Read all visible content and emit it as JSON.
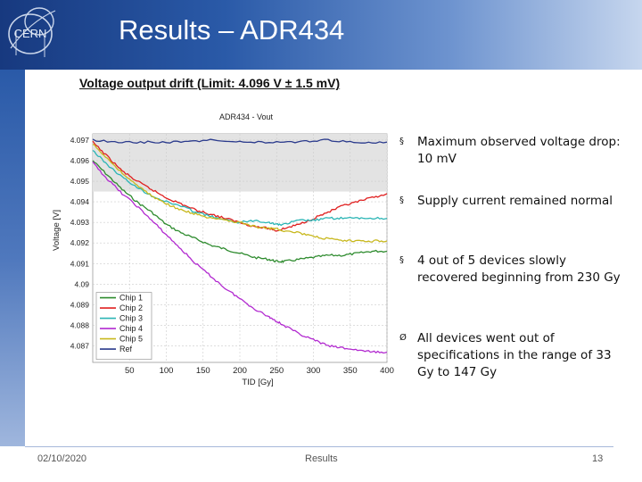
{
  "slide": {
    "logo_text": "CERN",
    "title": "Results – ADR434",
    "subtitle": "Voltage output drift (Limit: 4.096 V ± 1.5 mV)",
    "bullets": [
      {
        "marker": "§",
        "text": "Maximum observed voltage drop: 10 mV"
      },
      {
        "marker": "§",
        "text": "Supply current remained normal"
      },
      {
        "marker": "§",
        "text": "4 out of 5 devices slowly recovered beginning from 230 Gy"
      },
      {
        "marker": "Ø",
        "text": "All devices went out of specifications in the range of 33 Gy to 147 Gy"
      }
    ],
    "footer": {
      "date": "02/10/2020",
      "section": "Results",
      "page": "13"
    }
  },
  "chart_data": {
    "type": "line",
    "title": "ADR434 - Vout",
    "xlabel": "TID [Gy]",
    "ylabel": "Voltage [V]",
    "xlim": [
      0,
      400
    ],
    "ylim": [
      4.0862,
      4.0973
    ],
    "x_ticks": [
      "50",
      "100",
      "150",
      "200",
      "250",
      "300",
      "350",
      "400"
    ],
    "x_tick_values": [
      50,
      100,
      150,
      200,
      250,
      300,
      350,
      400
    ],
    "y_ticks": [
      "4.097",
      "4.096",
      "4.095",
      "4.094",
      "4.093",
      "4.092",
      "4.091",
      "4.09",
      "4.089",
      "4.088",
      "4.087"
    ],
    "y_tick_values": [
      4.097,
      4.096,
      4.095,
      4.094,
      4.093,
      4.092,
      4.091,
      4.09,
      4.089,
      4.088,
      4.087
    ],
    "grid": true,
    "legend_position": "bottom-left",
    "spec_band": [
      4.0945,
      4.0975
    ],
    "spec_band_color": "#e3e3e3",
    "series": [
      {
        "name": "Chip 1",
        "color": "#2e8b2e",
        "x": [
          0,
          20,
          40,
          60,
          80,
          100,
          120,
          140,
          160,
          180,
          200,
          220,
          240,
          250,
          260,
          280,
          300,
          320,
          340,
          360,
          380,
          400
        ],
        "y": [
          4.096,
          4.0953,
          4.0946,
          4.094,
          4.0935,
          4.0929,
          4.0925,
          4.0922,
          4.0919,
          4.0917,
          4.0915,
          4.0913,
          4.0912,
          4.0911,
          4.0911,
          4.0912,
          4.0913,
          4.0914,
          4.0914,
          4.0915,
          4.0916,
          4.0916
        ]
      },
      {
        "name": "Chip 2",
        "color": "#e02020",
        "x": [
          0,
          20,
          40,
          60,
          80,
          100,
          120,
          140,
          160,
          180,
          200,
          220,
          240,
          250,
          260,
          280,
          300,
          320,
          340,
          360,
          380,
          400
        ],
        "y": [
          4.0969,
          4.0962,
          4.0955,
          4.095,
          4.0946,
          4.0942,
          4.0939,
          4.0936,
          4.0934,
          4.0932,
          4.093,
          4.0928,
          4.0927,
          4.0926,
          4.0927,
          4.0929,
          4.0932,
          4.0935,
          4.0938,
          4.094,
          4.0942,
          4.0944
        ]
      },
      {
        "name": "Chip 3",
        "color": "#2bb5b5",
        "x": [
          0,
          20,
          40,
          60,
          80,
          100,
          120,
          140,
          160,
          180,
          200,
          220,
          240,
          250,
          260,
          280,
          300,
          320,
          340,
          360,
          380,
          400
        ],
        "y": [
          4.0965,
          4.0958,
          4.0952,
          4.0947,
          4.0943,
          4.094,
          4.0938,
          4.0935,
          4.0933,
          4.0931,
          4.093,
          4.0931,
          4.093,
          4.0929,
          4.0929,
          4.0931,
          4.0931,
          4.0932,
          4.0932,
          4.0932,
          4.0932,
          4.0932
        ]
      },
      {
        "name": "Chip 4",
        "color": "#b22ad0",
        "x": [
          0,
          20,
          40,
          60,
          80,
          100,
          120,
          140,
          160,
          180,
          200,
          220,
          240,
          250,
          260,
          280,
          300,
          320,
          340,
          360,
          380,
          400
        ],
        "y": [
          4.0959,
          4.0951,
          4.0944,
          4.0938,
          4.0931,
          4.0924,
          4.0917,
          4.091,
          4.0904,
          4.0898,
          4.0893,
          4.0888,
          4.0884,
          4.0882,
          4.088,
          4.0876,
          4.0873,
          4.087,
          4.0869,
          4.0868,
          4.0867,
          4.0867
        ]
      },
      {
        "name": "Chip 5",
        "color": "#c8b81e",
        "x": [
          0,
          20,
          40,
          60,
          80,
          100,
          120,
          140,
          160,
          180,
          200,
          220,
          240,
          250,
          260,
          280,
          300,
          320,
          340,
          360,
          380,
          400
        ],
        "y": [
          4.0968,
          4.0961,
          4.0954,
          4.0948,
          4.0943,
          4.0939,
          4.0936,
          4.0934,
          4.0932,
          4.0931,
          4.093,
          4.0928,
          4.0927,
          4.0927,
          4.0926,
          4.0925,
          4.0923,
          4.0922,
          4.0921,
          4.0921,
          4.0921,
          4.0921
        ]
      },
      {
        "name": "Ref",
        "color": "#2a3a8c",
        "x": [
          0,
          40,
          80,
          120,
          160,
          200,
          240,
          280,
          320,
          360,
          400
        ],
        "y": [
          4.097,
          4.0969,
          4.0969,
          4.0969,
          4.097,
          4.0969,
          4.0969,
          4.0969,
          4.097,
          4.0969,
          4.0969
        ]
      }
    ]
  }
}
